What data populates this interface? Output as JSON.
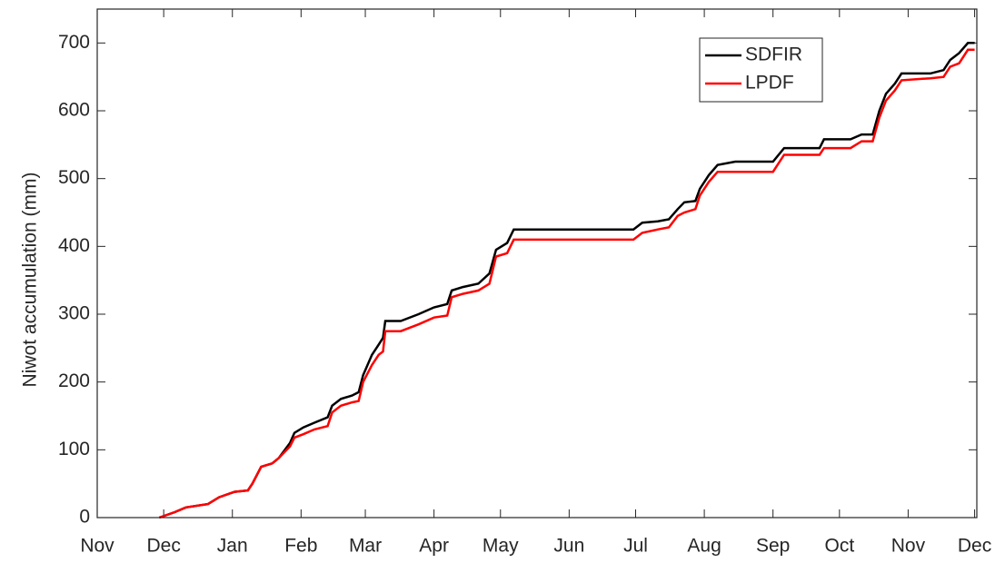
{
  "chart_data": {
    "type": "line",
    "ylabel": "Niwot accumulation (mm)",
    "x": [
      28,
      35,
      40,
      50,
      55,
      62,
      68,
      70,
      74,
      79,
      82,
      87,
      89,
      93,
      98,
      104,
      106,
      110,
      115,
      118,
      120,
      124,
      127,
      129,
      130,
      137,
      145,
      152,
      158,
      160,
      165,
      172,
      177,
      180,
      185,
      188,
      242,
      246,
      253,
      258,
      262,
      265,
      270,
      272,
      276,
      280,
      288,
      305,
      310,
      326,
      328,
      340,
      345,
      350,
      353,
      356,
      360,
      363,
      376,
      382,
      385,
      389,
      393,
      396
    ],
    "series": [
      {
        "name": "SDFIR",
        "color": "#000000",
        "values": [
          0,
          8,
          15,
          20,
          30,
          38,
          40,
          50,
          75,
          80,
          88,
          110,
          125,
          133,
          140,
          148,
          165,
          175,
          180,
          185,
          210,
          240,
          255,
          265,
          290,
          290,
          300,
          310,
          315,
          335,
          340,
          345,
          360,
          395,
          405,
          425,
          425,
          435,
          437,
          440,
          455,
          465,
          467,
          485,
          505,
          520,
          525,
          525,
          545,
          545,
          558,
          558,
          565,
          565,
          600,
          625,
          640,
          655,
          655,
          660,
          675,
          685,
          700,
          700
        ]
      },
      {
        "name": "LPDF",
        "color": "#ff0000",
        "values": [
          0,
          8,
          15,
          20,
          30,
          38,
          40,
          50,
          75,
          80,
          88,
          105,
          118,
          123,
          130,
          135,
          155,
          165,
          170,
          172,
          200,
          225,
          240,
          245,
          275,
          275,
          285,
          295,
          298,
          325,
          330,
          335,
          345,
          385,
          390,
          410,
          410,
          420,
          425,
          428,
          445,
          450,
          455,
          475,
          495,
          510,
          510,
          510,
          535,
          535,
          545,
          545,
          555,
          555,
          590,
          615,
          630,
          645,
          648,
          650,
          665,
          670,
          690,
          690
        ]
      }
    ],
    "xlim": [
      0,
      397
    ],
    "xticks": [
      {
        "value": 0,
        "label": "Nov"
      },
      {
        "value": 30,
        "label": "Dec"
      },
      {
        "value": 61,
        "label": "Jan"
      },
      {
        "value": 92,
        "label": "Feb"
      },
      {
        "value": 121,
        "label": "Mar"
      },
      {
        "value": 152,
        "label": "Apr"
      },
      {
        "value": 182,
        "label": "May"
      },
      {
        "value": 213,
        "label": "Jun"
      },
      {
        "value": 243,
        "label": "Jul"
      },
      {
        "value": 274,
        "label": "Aug"
      },
      {
        "value": 305,
        "label": "Sep"
      },
      {
        "value": 335,
        "label": "Oct"
      },
      {
        "value": 366,
        "label": "Nov"
      },
      {
        "value": 396,
        "label": "Dec"
      }
    ],
    "ylim": [
      0,
      750
    ],
    "yticks": [
      0,
      100,
      200,
      300,
      400,
      500,
      600,
      700
    ],
    "legend": "northeast"
  }
}
